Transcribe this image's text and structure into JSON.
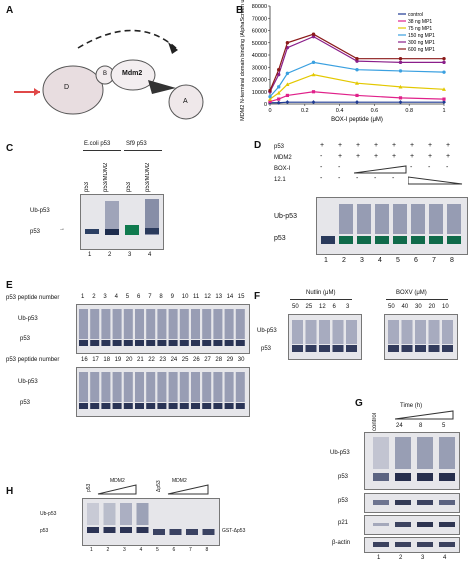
{
  "panels": {
    "A": {
      "letter": "A",
      "labels": {
        "D": "D",
        "B": "B",
        "mdm2": "Mdm2",
        "A": "A"
      }
    },
    "B": {
      "letter": "B"
    },
    "C": {
      "letter": "C",
      "headers": [
        "E.coli p53",
        "Sf9 p53"
      ],
      "lane_labels": [
        "p53",
        "p53/MDM2",
        "p53",
        "p53/MDM2"
      ],
      "lane_numbers": [
        "1",
        "2",
        "3",
        "4"
      ],
      "ub": "Ub-p53",
      "p53": "p53"
    },
    "D": {
      "letter": "D",
      "rows": [
        {
          "label": "p53",
          "marks": [
            "+",
            "+",
            "+",
            "+",
            "+",
            "+",
            "+",
            "+"
          ]
        },
        {
          "label": "MDM2",
          "marks": [
            "-",
            "+",
            "+",
            "+",
            "+",
            "+",
            "+",
            "+"
          ]
        },
        {
          "label": "BOX-I",
          "marks": [
            "-",
            "-",
            "",
            "",
            "",
            "-",
            "-",
            "-"
          ]
        },
        {
          "label": "12.1",
          "marks": [
            "-",
            "-",
            "-",
            "-",
            "-",
            "",
            "",
            ""
          ]
        }
      ],
      "lane_numbers": [
        "1",
        "2",
        "3",
        "4",
        "5",
        "6",
        "7",
        "8"
      ],
      "ub": "Ub-p53",
      "p53": "p53"
    },
    "E": {
      "letter": "E",
      "row_label": "p53 peptide number",
      "row1": [
        "1",
        "2",
        "3",
        "4",
        "5",
        "6",
        "7",
        "8",
        "9",
        "10",
        "11",
        "12",
        "13",
        "14",
        "15"
      ],
      "row2": [
        "16",
        "17",
        "18",
        "19",
        "20",
        "21",
        "22",
        "23",
        "24",
        "25",
        "26",
        "27",
        "28",
        "29",
        "30"
      ],
      "ub": "Ub-p53",
      "p53": "p53"
    },
    "F": {
      "letter": "F",
      "nutlin_title": "Nutlin (μM)",
      "nutlin": [
        "50",
        "25",
        "12",
        "6",
        "3"
      ],
      "boxv_title": "BOXV (μM)",
      "boxv": [
        "50",
        "40",
        "30",
        "20",
        "10"
      ],
      "ub": "Ub-p53",
      "p53": "p53"
    },
    "G": {
      "letter": "G",
      "time_title": "Time (h)",
      "control": "control",
      "times": [
        "24",
        "8",
        "5"
      ],
      "ub": "Ub-p53",
      "rows": [
        "p53",
        "p53",
        "p21",
        "β-actin"
      ],
      "lane_numbers": [
        "1",
        "2",
        "3",
        "4"
      ]
    },
    "H": {
      "letter": "H",
      "lane_labels": [
        "p53",
        "Δp53"
      ],
      "mdm2": "MDM2",
      "ub": "Ub-p53",
      "p53": "p53",
      "gst": "GST-Δp53",
      "lane_numbers": [
        "1",
        "2",
        "3",
        "4",
        "5",
        "6",
        "7",
        "8"
      ]
    }
  },
  "chart_data": {
    "type": "line",
    "title": "",
    "xlabel": "BOX-I peptide (μM)",
    "ylabel": "MDM2 N-terminal domain binding (AlphaScreen units)",
    "xlim": [
      0,
      1
    ],
    "ylim": [
      0,
      80000
    ],
    "xticks": [
      "0",
      "0.2",
      "0.4",
      "0.6",
      "0.8",
      "1"
    ],
    "yticks": [
      "0",
      "10000",
      "20000",
      "30000",
      "40000",
      "50000",
      "60000",
      "70000",
      "80000"
    ],
    "legend_position": "top-right",
    "x": [
      0,
      0.05,
      0.1,
      0.25,
      0.5,
      0.75,
      1.0
    ],
    "series": [
      {
        "name": "control",
        "color": "#1f3a93",
        "values": [
          1000,
          1000,
          1500,
          1500,
          1500,
          1500,
          1500
        ]
      },
      {
        "name": "38 ng MP1",
        "color": "#e0218a",
        "values": [
          2000,
          4000,
          7000,
          10000,
          7000,
          5000,
          4000
        ]
      },
      {
        "name": "75 ng MP1",
        "color": "#e3c800",
        "values": [
          4000,
          9000,
          16000,
          24000,
          17000,
          14000,
          12000
        ]
      },
      {
        "name": "150 ng MP1",
        "color": "#3aa0e0",
        "values": [
          6000,
          14000,
          25000,
          34000,
          28000,
          27000,
          26000
        ]
      },
      {
        "name": "300 ng MP1",
        "color": "#8a1e8a",
        "values": [
          10000,
          24000,
          46000,
          55000,
          35000,
          34000,
          34000
        ]
      },
      {
        "name": "600 ng MP1",
        "color": "#8b1a1a",
        "values": [
          11000,
          28000,
          50000,
          57000,
          37000,
          37000,
          37000
        ]
      }
    ]
  }
}
